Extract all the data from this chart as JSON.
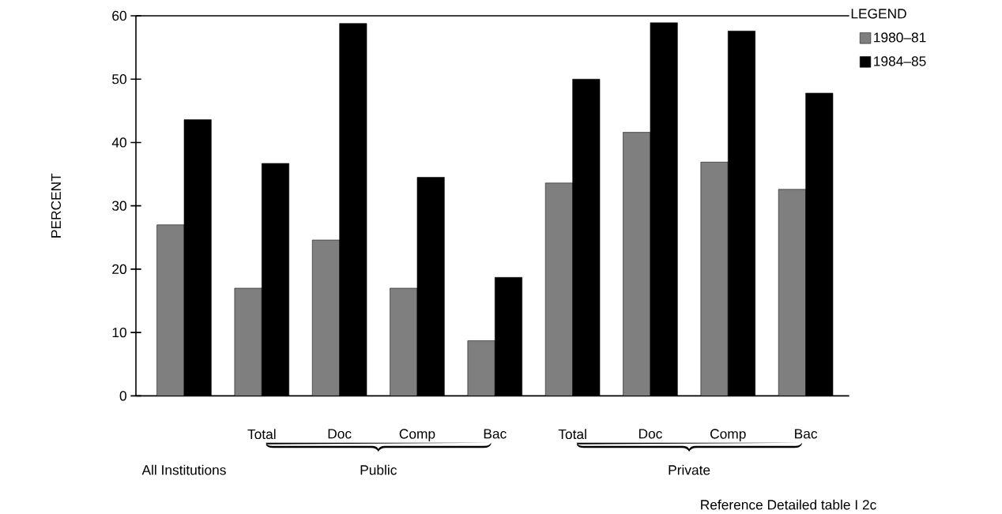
{
  "chart_data": {
    "type": "bar",
    "categories": [
      null,
      "Total",
      "Doc",
      "Comp",
      "Bac",
      "Total",
      "Doc",
      "Comp",
      "Bac"
    ],
    "series": [
      {
        "name": "1980–81",
        "color": "#7f7f7f",
        "values": [
          27,
          17,
          24.6,
          17,
          8.7,
          33.6,
          41.6,
          36.9,
          32.6
        ]
      },
      {
        "name": "1984–85",
        "color": "#000000",
        "values": [
          43.6,
          36.7,
          58.8,
          34.5,
          18.7,
          50,
          58.9,
          57.6,
          47.8
        ]
      }
    ],
    "ylabel": "PERCENT",
    "legend_title": "LEGEND",
    "legend": "right",
    "ylim": [
      0,
      60
    ],
    "yticks": [
      0,
      10,
      20,
      30,
      40,
      50,
      60
    ],
    "grid": false,
    "annotations": [
      "All Institutions",
      "Public",
      "Private",
      "Reference  Detailed table I 2c"
    ]
  }
}
